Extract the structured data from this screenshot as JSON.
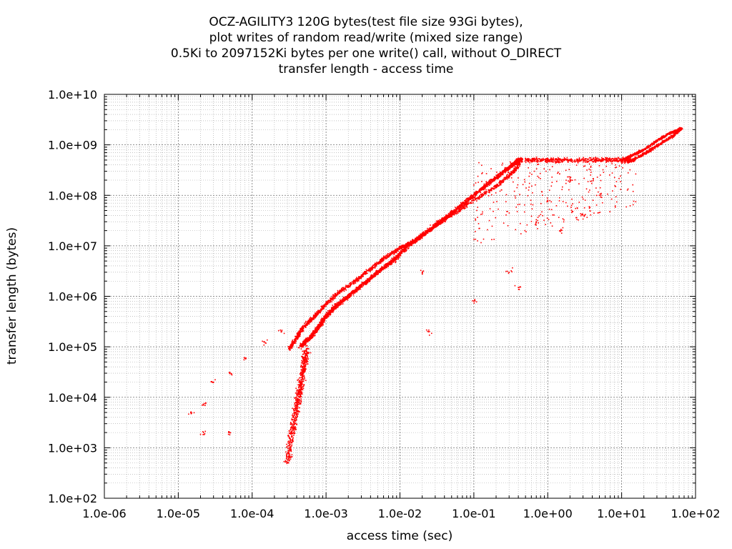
{
  "chart_data": {
    "type": "scatter",
    "title": [
      "OCZ-AGILITY3 120G bytes(test file size 93Gi bytes),",
      "plot writes of random read/write (mixed size range)",
      "0.5Ki to 2097152Ki bytes per one write() call, without O_DIRECT",
      "transfer length - access time"
    ],
    "xlabel": "access time (sec)",
    "ylabel": "transfer length (bytes)",
    "x_scale": "log",
    "y_scale": "log",
    "xlim": [
      1e-06,
      100
    ],
    "ylim": [
      100,
      10000000000.0
    ],
    "x_ticks": [
      "1.0e-06",
      "1.0e-05",
      "1.0e-04",
      "1.0e-03",
      "1.0e-02",
      "1.0e-01",
      "1.0e+00",
      "1.0e+01",
      "1.0e+02"
    ],
    "y_ticks": [
      "1.0e+02",
      "1.0e+03",
      "1.0e+04",
      "1.0e+05",
      "1.0e+06",
      "1.0e+07",
      "1.0e+08",
      "1.0e+09",
      "1.0e+10"
    ],
    "grid": true,
    "legend": "none",
    "point_color": "#ff0000",
    "series": [
      {
        "main_band": [
          [
            0.00045,
            100000
          ],
          [
            0.0006,
            150000
          ],
          [
            0.0008,
            250000
          ],
          [
            0.001,
            400000
          ],
          [
            0.0013,
            600000
          ],
          [
            0.002,
            1000000
          ],
          [
            0.003,
            1600000
          ],
          [
            0.005,
            3000000
          ],
          [
            0.008,
            5000000
          ],
          [
            0.012,
            9000000
          ],
          [
            0.02,
            16000000
          ],
          [
            0.035,
            30000000
          ],
          [
            0.06,
            55000000
          ],
          [
            0.1,
            100000000
          ],
          [
            0.18,
            200000000
          ],
          [
            0.3,
            350000000
          ],
          [
            0.42,
            520000000
          ]
        ],
        "upper_band": [
          [
            0.00032,
            90000
          ],
          [
            0.0004,
            150000
          ],
          [
            0.0005,
            250000
          ],
          [
            0.0007,
            400000
          ],
          [
            0.001,
            700000
          ],
          [
            0.0015,
            1200000
          ],
          [
            0.0025,
            2000000
          ],
          [
            0.004,
            3500000
          ],
          [
            0.006,
            5500000
          ],
          [
            0.01,
            9000000
          ],
          [
            0.015,
            12000000
          ],
          [
            0.025,
            20000000
          ],
          [
            0.05,
            40000000
          ],
          [
            0.1,
            80000000
          ],
          [
            0.2,
            150000000
          ],
          [
            0.35,
            300000000
          ],
          [
            0.45,
            520000000
          ]
        ],
        "plateau": [
          [
            0.5,
            500000000
          ],
          [
            1,
            500000000
          ],
          [
            2,
            500000000
          ],
          [
            5,
            500000000
          ],
          [
            10,
            500000000
          ],
          [
            15,
            500000000
          ]
        ],
        "upper_right_band": [
          [
            10,
            500000000
          ],
          [
            15,
            650000000
          ],
          [
            20,
            800000000
          ],
          [
            30,
            1200000000
          ],
          [
            45,
            1700000000
          ],
          [
            60,
            2000000000
          ],
          [
            65,
            2100000000
          ]
        ],
        "lower_right_band": [
          [
            12,
            450000000
          ],
          [
            18,
            600000000
          ],
          [
            25,
            800000000
          ],
          [
            35,
            1100000000
          ],
          [
            50,
            1500000000
          ],
          [
            62,
            2000000000
          ]
        ],
        "low_cluster_column": [
          [
            0.0003,
            500
          ],
          [
            0.00035,
            2000
          ],
          [
            0.0004,
            6000
          ],
          [
            0.00045,
            15000
          ],
          [
            0.0005,
            40000
          ],
          [
            0.00055,
            90000
          ]
        ],
        "scattered_points": [
          [
            1.5e-05,
            5000
          ],
          [
            2.2e-05,
            2000
          ],
          [
            2.2e-05,
            7000
          ],
          [
            3e-05,
            20000
          ],
          [
            5e-05,
            2000
          ],
          [
            5e-05,
            30000
          ],
          [
            8e-05,
            60000
          ],
          [
            0.00015,
            120000
          ],
          [
            0.00025,
            200000
          ],
          [
            0.025,
            200000
          ],
          [
            0.1,
            800000
          ],
          [
            0.3,
            3000000
          ],
          [
            0.4,
            1500000
          ],
          [
            0.02,
            3000000
          ],
          [
            1.5,
            20000000
          ],
          [
            3,
            40000000
          ],
          [
            0.7,
            30000000
          ],
          [
            1,
            80000000
          ],
          [
            5,
            100000000
          ],
          [
            2,
            200000000
          ]
        ]
      }
    ]
  }
}
